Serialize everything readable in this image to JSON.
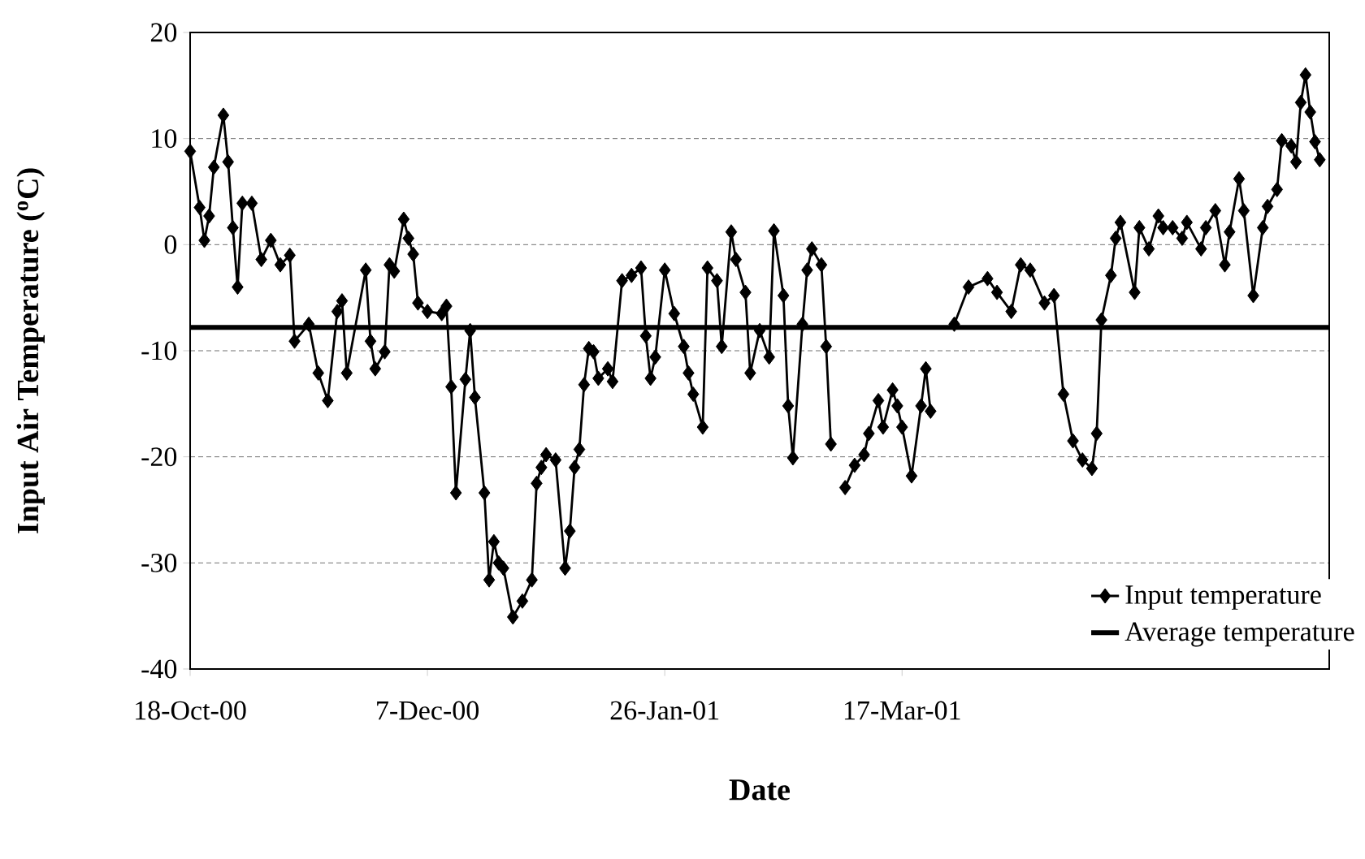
{
  "chart_data": {
    "type": "line",
    "xlabel": "Date",
    "ylabel": "Input Air Temperature ($^{o}$C)",
    "xlim": [
      "2000-10-18",
      "2001-06-15"
    ],
    "xticks": [
      {
        "value": "2000-10-18",
        "label": "18-Oct-00"
      },
      {
        "value": "2000-12-07",
        "label": "7-Dec-00"
      },
      {
        "value": "2001-01-26",
        "label": "26-Jan-01"
      },
      {
        "value": "2001-03-17",
        "label": "17-Mar-01"
      }
    ],
    "ylim": [
      -40,
      20
    ],
    "yticks": [
      20,
      10,
      0,
      -10,
      -20,
      -30,
      -40
    ],
    "grid": "y",
    "legend": "bottom right",
    "series": [
      {
        "name": "Input temperature",
        "color": "#000000",
        "marker": "diamond",
        "x": [
          "2000-10-18",
          "2000-10-20",
          "2000-10-21",
          "2000-10-22",
          "2000-10-23",
          "2000-10-25",
          "2000-10-26",
          "2000-10-27",
          "2000-10-28",
          "2000-10-29",
          "2000-10-31",
          "2000-11-02",
          "2000-11-04",
          "2000-11-06",
          "2000-11-08",
          "2000-11-09",
          "2000-11-12",
          "2000-11-14",
          "2000-11-16",
          "2000-11-18",
          "2000-11-19",
          "2000-11-20",
          "2000-11-24",
          "2000-11-25",
          "2000-11-26",
          "2000-11-28",
          "2000-11-29",
          "2000-11-30",
          "2000-12-02",
          "2000-12-03",
          "2000-12-04",
          "2000-12-05",
          "2000-12-07",
          "2000-12-10",
          "2000-12-11",
          "2000-12-12",
          "2000-12-13",
          "2000-12-15",
          "2000-12-16",
          "2000-12-17",
          "2000-12-19",
          "2000-12-20",
          "2000-12-21",
          "2000-12-22",
          "2000-12-23",
          "2000-12-25",
          "2000-12-27",
          "2000-12-29",
          "2000-12-30",
          "2000-12-31",
          "2001-01-01",
          "2001-01-03",
          "2001-01-05",
          "2001-01-06",
          "2001-01-07",
          "2001-01-08",
          "2001-01-09",
          "2001-01-10",
          "2001-01-11",
          "2001-01-12",
          "2001-01-14",
          "2001-01-15",
          "2001-01-17",
          "2001-01-19",
          "2001-01-21",
          "2001-01-22",
          "2001-01-23",
          "2001-01-24",
          "2001-01-26",
          "2001-01-28",
          "2001-01-30",
          "2001-01-31",
          "2001-02-01",
          "2001-02-03",
          "2001-02-04",
          "2001-02-06",
          "2001-02-07",
          "2001-02-09",
          "2001-02-10",
          "2001-02-12",
          "2001-02-13",
          "2001-02-15",
          "2001-02-17",
          "2001-02-18",
          "2001-02-20",
          "2001-02-21",
          "2001-02-22",
          "2001-02-24",
          "2001-02-25",
          "2001-02-26",
          "2001-02-28",
          "2001-03-01",
          "2001-03-02",
          "2001-03-04",
          "2001-03-05",
          "2001-03-07",
          "2001-03-09",
          "2001-03-10",
          "2001-03-12",
          "2001-03-13",
          "2001-03-15",
          "2001-03-16",
          "2001-03-17",
          "2001-03-19",
          "2001-03-21",
          "2001-03-22",
          "2001-03-23",
          "2001-03-25",
          "2001-03-28",
          "2001-03-31",
          "2001-04-04",
          "2001-04-06",
          "2001-04-09",
          "2001-04-11",
          "2001-04-13",
          "2001-04-16",
          "2001-04-18",
          "2001-04-20",
          "2001-04-22",
          "2001-04-24",
          "2001-04-26",
          "2001-04-27",
          "2001-04-28",
          "2001-04-30",
          "2001-05-01",
          "2001-05-02",
          "2001-05-05",
          "2001-05-06",
          "2001-05-08",
          "2001-05-10",
          "2001-05-11",
          "2001-05-13",
          "2001-05-15",
          "2001-05-16",
          "2001-05-19",
          "2001-05-20",
          "2001-05-22",
          "2001-05-24",
          "2001-05-25",
          "2001-05-27",
          "2001-05-28",
          "2001-05-30",
          "2001-06-01",
          "2001-06-02",
          "2001-06-04",
          "2001-06-05",
          "2001-06-07",
          "2001-06-08",
          "2001-06-09",
          "2001-06-10",
          "2001-06-11",
          "2001-06-12",
          "2001-06-13"
        ],
        "values": [
          8.8,
          3.5,
          0.4,
          2.7,
          7.3,
          12.2,
          7.8,
          1.6,
          -4,
          3.9,
          3.9,
          -1.4,
          0.4,
          -1.9,
          -1,
          -9.1,
          -7.5,
          -12.1,
          -14.7,
          -6.3,
          -5.3,
          -12.1,
          -2.4,
          -9.1,
          -11.7,
          -10.1,
          -1.9,
          -2.5,
          2.4,
          0.6,
          -0.9,
          -5.5,
          -6.3,
          -6.5,
          -5.8,
          -13.4,
          -23.4,
          -12.7,
          -8.1,
          -14.4,
          -23.4,
          -31.6,
          -28,
          -30,
          -30.5,
          -35.1,
          -33.6,
          -31.6,
          -22.5,
          -21,
          -19.8,
          -20.3,
          -30.5,
          -27,
          -21,
          -19.3,
          -13.2,
          -9.8,
          -10.1,
          -12.6,
          -11.7,
          -12.9,
          -3.4,
          -2.9,
          -2.2,
          -8.6,
          -12.6,
          -10.6,
          -2.4,
          -6.5,
          -9.6,
          -12.1,
          -14.1,
          -17.2,
          -2.2,
          -3.4,
          -9.6,
          1.2,
          -1.4,
          -4.5,
          -12.1,
          -8.1,
          -10.6,
          1.3,
          -4.8,
          -15.2,
          -20.1,
          -7.5,
          -2.4,
          -0.4,
          -1.9,
          -9.6,
          -18.8,
          null,
          -22.9,
          -20.8,
          -19.8,
          -17.8,
          -14.7,
          -17.2,
          -13.7,
          -15.2,
          -17.2,
          -21.8,
          -15.2,
          -11.7,
          -15.7,
          null,
          -7.5,
          -4,
          -3.2,
          -4.5,
          -6.3,
          -1.9,
          -2.4,
          -5.5,
          -4.8,
          -14.1,
          -18.5,
          -20.3,
          -21.1,
          -17.8,
          -7.1,
          -2.9,
          0.6,
          2.1,
          -4.5,
          1.6,
          -0.4,
          2.7,
          1.6,
          1.6,
          0.6,
          2.1,
          -0.4,
          1.6,
          3.2,
          -1.9,
          1.2,
          6.2,
          3.2,
          -4.8,
          1.6,
          3.6,
          5.2,
          9.8,
          9.3,
          7.8,
          13.4,
          16,
          12.5,
          9.7,
          8
        ]
      },
      {
        "name": "Average temperature",
        "color": "#000000",
        "marker": "none",
        "x": [
          "2000-10-18",
          "2001-06-15"
        ],
        "values": [
          -7.8,
          -7.8
        ]
      }
    ]
  }
}
